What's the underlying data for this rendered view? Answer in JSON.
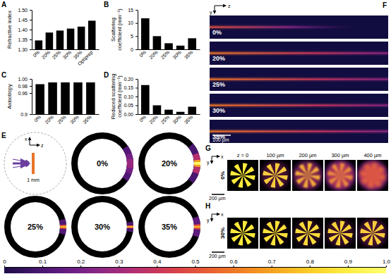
{
  "chart_data": [
    {
      "panel": "A",
      "type": "bar",
      "y_label": [
        "Refractive index"
      ],
      "categories": [
        "0%",
        "20%",
        "25%",
        "30%",
        "35%",
        "Optiprep"
      ],
      "values": [
        1.345,
        1.385,
        1.395,
        1.405,
        1.415,
        1.445
      ],
      "color": "#000000",
      "ylim": [
        1.3,
        1.5
      ],
      "yticks": [
        {
          "value": 1.3,
          "label": "1.30"
        },
        {
          "value": 1.35,
          "label": "1.35"
        },
        {
          "value": 1.4,
          "label": "1.40"
        },
        {
          "value": 1.45,
          "label": "1.45"
        },
        {
          "value": 1.5,
          "label": "1.50"
        }
      ]
    },
    {
      "panel": "B",
      "type": "bar",
      "y_label": [
        "Scattering",
        "coefficient (mm⁻¹)"
      ],
      "categories": [
        "0%",
        "20%",
        "25%",
        "30%",
        "35%"
      ],
      "values": [
        11.8,
        5.0,
        2.3,
        1.4,
        4.2
      ],
      "color": "#000000",
      "ylim": [
        0,
        15
      ],
      "yticks": [
        0,
        5,
        10,
        15
      ]
    },
    {
      "panel": "C",
      "type": "bar",
      "y_label": [
        "Anisotropy"
      ],
      "categories": [
        "0%",
        "20%",
        "25%",
        "30%",
        "35%"
      ],
      "values": [
        0.985,
        0.99,
        0.99,
        0.99,
        0.99
      ],
      "color": "#000000",
      "ylim": [
        0.9,
        1.0
      ],
      "yticks": [
        0.9,
        0.96,
        0.98,
        {
          "value": 1.0,
          "label": "1.00"
        }
      ]
    },
    {
      "panel": "D",
      "type": "bar",
      "y_label": [
        "Reduced scattering",
        "coefficient (mm⁻¹)"
      ],
      "categories": [
        "0%",
        "20%",
        "25%",
        "30%",
        "35%"
      ],
      "values": [
        0.165,
        0.05,
        0.025,
        0.013,
        0.042
      ],
      "color": "#000000",
      "ylim": [
        0,
        0.2
      ],
      "yticks": [
        {
          "value": 0,
          "label": "0.00"
        },
        {
          "value": 0.05,
          "label": "0.05"
        },
        {
          "value": 0.1,
          "label": "0.10"
        },
        {
          "value": 0.15,
          "label": "0.15"
        },
        {
          "value": 0.2,
          "label": "0.20"
        }
      ]
    }
  ],
  "images": [
    {
      "panel": "E",
      "axes": [
        "x",
        "z"
      ],
      "inset_label": "1 mm",
      "rings": [
        "0%",
        "20%",
        "25%",
        "30%",
        "35%"
      ]
    },
    {
      "panel": "F",
      "axes": [
        "z",
        "y"
      ],
      "rows": [
        "0%",
        "20%",
        "25%",
        "30%",
        "35%"
      ],
      "scale_bar": "100 µm"
    },
    {
      "panel": "G",
      "axes": [
        "x",
        "y"
      ],
      "row_label": "0%",
      "depths": [
        "z = 0",
        "100 µm",
        "200 µm",
        "300 µm",
        "400 µm"
      ],
      "scale_bar": "200 µm"
    },
    {
      "panel": "H",
      "axes": [
        "x",
        "y"
      ],
      "row_label": "30%",
      "scale_bar": "200 µm"
    }
  ],
  "colorbar": {
    "range": [
      0,
      1
    ],
    "ticks": [
      0,
      0.1,
      0.2,
      0.3,
      0.4,
      0.5,
      0.6,
      0.7,
      0.8,
      0.9,
      {
        "value": 1,
        "label": "1.0"
      }
    ]
  }
}
